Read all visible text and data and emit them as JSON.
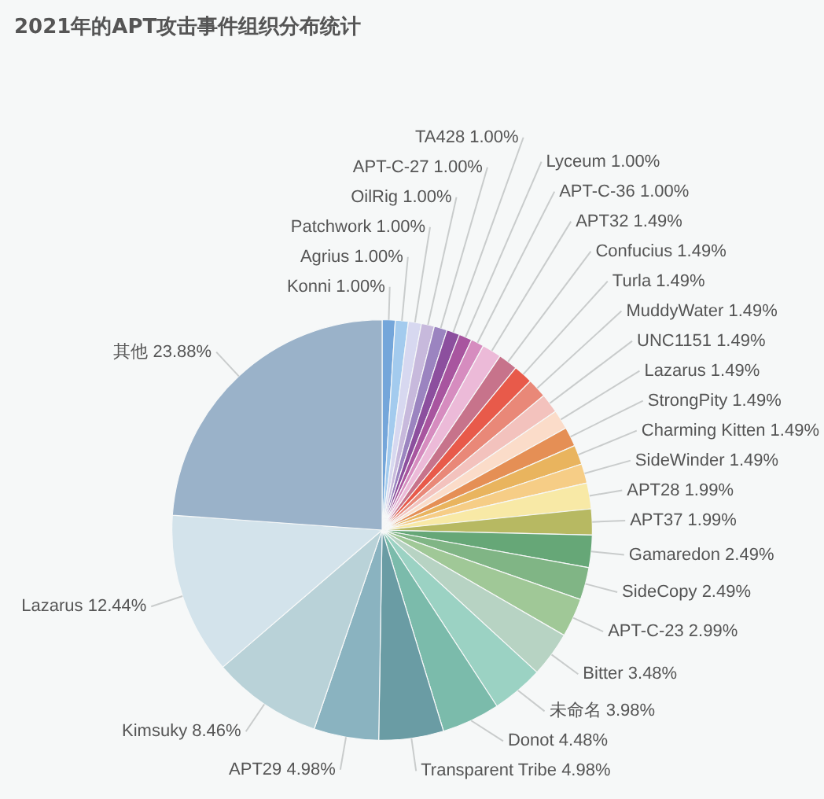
{
  "chart_data": {
    "type": "pie",
    "title": "2021年的APT攻击事件组织分布统计",
    "categories": [
      "Konni",
      "Agrius",
      "Patchwork",
      "OilRig",
      "APT-C-27",
      "TA428",
      "Lyceum",
      "APT-C-36",
      "APT32",
      "Confucius",
      "Turla",
      "MuddyWater",
      "UNC1151",
      "Lazarus",
      "StrongPity",
      "Charming Kitten",
      "SideWinder",
      "APT28",
      "APT37",
      "Gamaredon",
      "SideCopy",
      "APT-C-23",
      "Bitter",
      "未命名",
      "Donot",
      "Transparent Tribe",
      "APT29",
      "Kimsuky",
      "Lazarus",
      "其他"
    ],
    "values": [
      1.0,
      1.0,
      1.0,
      1.0,
      1.0,
      1.0,
      1.0,
      1.0,
      1.49,
      1.49,
      1.49,
      1.49,
      1.49,
      1.49,
      1.49,
      1.49,
      1.49,
      1.99,
      1.99,
      2.49,
      2.49,
      2.99,
      3.48,
      3.98,
      4.48,
      4.98,
      4.98,
      8.46,
      12.44,
      23.88
    ],
    "value_labels": [
      "1.00%",
      "1.00%",
      "1.00%",
      "1.00%",
      "1.00%",
      "1.00%",
      "1.00%",
      "1.00%",
      "1.49%",
      "1.49%",
      "1.49%",
      "1.49%",
      "1.49%",
      "1.49%",
      "1.49%",
      "1.49%",
      "1.49%",
      "1.99%",
      "1.99%",
      "2.49%",
      "2.49%",
      "2.99%",
      "3.48%",
      "3.98%",
      "4.48%",
      "4.98%",
      "4.98%",
      "8.46%",
      "12.44%",
      "23.88%"
    ],
    "colors": [
      "#74a6da",
      "#a3cbee",
      "#d7d8f0",
      "#c7b9dc",
      "#9b84c0",
      "#8c4f9e",
      "#a8559f",
      "#d68cbf",
      "#ecbad8",
      "#c7738b",
      "#e85a4a",
      "#e98878",
      "#f3c2bd",
      "#fbdcc9",
      "#e58f55",
      "#e9b45e",
      "#f6cd86",
      "#f8e9a6",
      "#b7b962",
      "#66a777",
      "#80b585",
      "#a0c897",
      "#b7d3c3",
      "#9bd2c3",
      "#7bbbab",
      "#6a9ca4",
      "#8ab3c0",
      "#b9d2d8",
      "#d3e3eb",
      "#9ab2c9"
    ],
    "legend": false
  }
}
